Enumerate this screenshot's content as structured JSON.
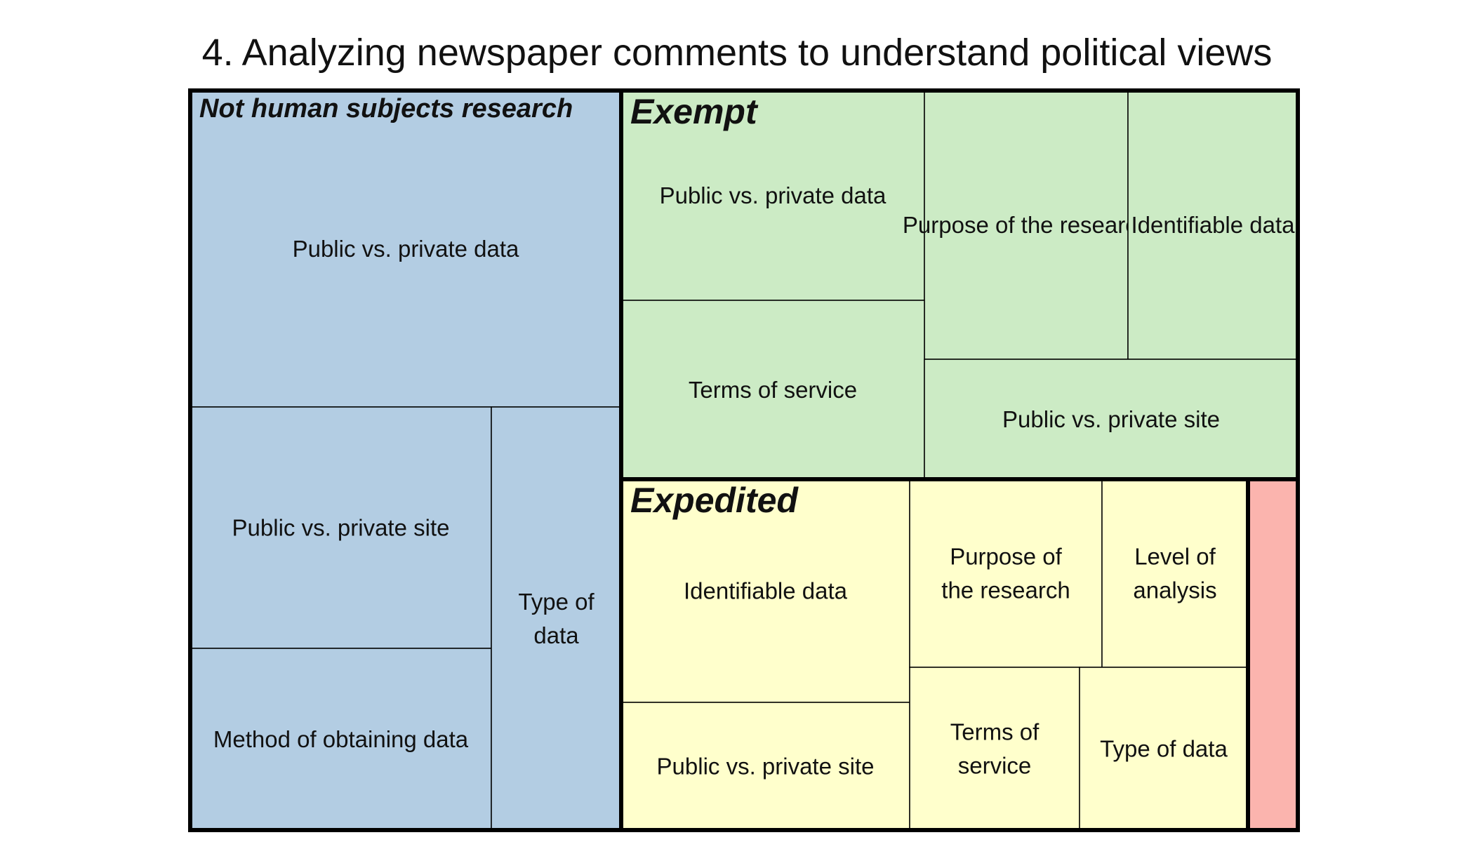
{
  "chart_data": {
    "type": "treemap",
    "title": "4. Analyzing newspaper comments to understand political views",
    "groups": [
      {
        "name": "Not human subjects research",
        "color": "#b3cde3",
        "tiles": [
          {
            "label": "Public vs. private data"
          },
          {
            "label": "Public vs. private site"
          },
          {
            "label": "Method of obtaining data"
          },
          {
            "label": "Type of data",
            "lines": [
              "Type of",
              "data"
            ]
          }
        ]
      },
      {
        "name": "Exempt",
        "color": "#ccebc5",
        "tiles": [
          {
            "label": "Public vs. private data"
          },
          {
            "label": "Purpose of the research"
          },
          {
            "label": "Terms of service"
          },
          {
            "label": "Identifiable data"
          },
          {
            "label": "Public vs. private site"
          }
        ]
      },
      {
        "name": "Expedited",
        "color": "#ffffcc",
        "tiles": [
          {
            "label": "Identifiable data"
          },
          {
            "label": "Public vs. private site"
          },
          {
            "label": "Purpose of the research",
            "lines": [
              "Purpose of",
              "the research"
            ]
          },
          {
            "label": "Level of analysis",
            "lines": [
              "Level of",
              "analysis"
            ]
          },
          {
            "label": "Terms of service",
            "lines": [
              "Terms of",
              "service"
            ]
          },
          {
            "label": "Type of data"
          }
        ]
      },
      {
        "name": "",
        "color": "#fbb4ae",
        "tiles": []
      }
    ]
  }
}
